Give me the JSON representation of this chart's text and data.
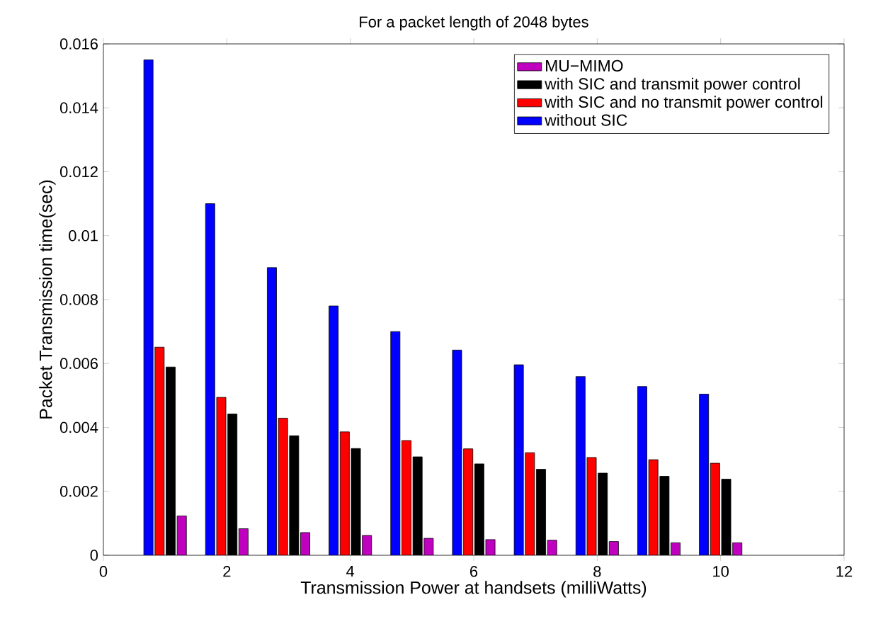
{
  "chart_data": {
    "type": "bar",
    "title": "For a packet length of 2048 bytes",
    "xlabel": "Transmission Power at handsets (milliWatts)",
    "ylabel": "Packet Transmission time(sec)",
    "x": [
      1,
      2,
      3,
      4,
      5,
      6,
      7,
      8,
      9,
      10
    ],
    "series": [
      {
        "name": "MU−MIMO",
        "color": "#bf00bf",
        "values": [
          0.00123,
          0.00083,
          0.00071,
          0.00062,
          0.00053,
          0.00049,
          0.00047,
          0.00043,
          0.00039,
          0.00039
        ]
      },
      {
        "name": "with SIC and transmit power control",
        "color": "#000000",
        "values": [
          0.00589,
          0.00442,
          0.00374,
          0.00334,
          0.00308,
          0.00286,
          0.00269,
          0.00257,
          0.00247,
          0.00238
        ]
      },
      {
        "name": "with SIC and no transmit power control",
        "color": "#ff0000",
        "values": [
          0.00651,
          0.00494,
          0.00429,
          0.00386,
          0.00359,
          0.00333,
          0.00321,
          0.00306,
          0.00299,
          0.00288
        ]
      },
      {
        "name": "without SIC",
        "color": "#0000ff",
        "values": [
          0.0155,
          0.011,
          0.009,
          0.0078,
          0.007,
          0.00642,
          0.00596,
          0.00559,
          0.00528,
          0.00504
        ]
      }
    ],
    "xlim": [
      0,
      12
    ],
    "xticks": [
      0,
      2,
      4,
      6,
      8,
      10,
      12
    ],
    "ylim": [
      0,
      0.016
    ],
    "yticks": [
      0,
      0.002,
      0.004,
      0.006,
      0.008,
      0.01,
      0.012,
      0.014,
      0.016
    ],
    "legend": "top right"
  }
}
